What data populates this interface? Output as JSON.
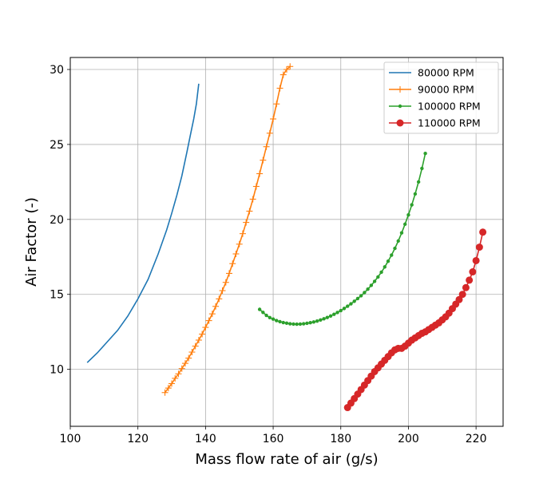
{
  "chart_data": {
    "type": "line",
    "title": "",
    "xlabel": "Mass flow rate of air (g/s)",
    "ylabel": "Air Factor (-)",
    "xlim": [
      100,
      228
    ],
    "ylim": [
      6.2,
      30.8
    ],
    "xticks": [
      100,
      120,
      140,
      160,
      180,
      200,
      220
    ],
    "yticks": [
      10,
      15,
      20,
      25,
      30
    ],
    "grid": true,
    "legend_position": "top-right",
    "series": [
      {
        "name": "  80000 RPM",
        "color": "#1f77b4",
        "marker": "none",
        "x": [
          105.0,
          108.0,
          111.0,
          114.0,
          117.0,
          120.0,
          123.0,
          126.0,
          128.5,
          130.0,
          131.5,
          133.0,
          134.5,
          135.5,
          136.5,
          137.3,
          138.0
        ],
        "y": [
          10.45,
          11.1,
          11.85,
          12.6,
          13.55,
          14.7,
          16.0,
          17.7,
          19.3,
          20.4,
          21.6,
          22.9,
          24.5,
          25.6,
          26.7,
          27.7,
          29.05
        ]
      },
      {
        "name": "  90000 RPM",
        "color": "#ff7f0e",
        "marker": "plus",
        "x": [
          128.0,
          129.0,
          130.0,
          131.0,
          132.0,
          133.0,
          134.0,
          135.0,
          136.0,
          137.0,
          138.0,
          139.0,
          140.0,
          141.0,
          142.0,
          143.0,
          144.0,
          145.0,
          146.0,
          147.0,
          148.0,
          149.0,
          150.0,
          151.0,
          152.0,
          153.0,
          154.0,
          155.0,
          156.0,
          157.0,
          158.0,
          159.0,
          160.0,
          161.0,
          162.0,
          163.0,
          164.0,
          165.0
        ],
        "y": [
          8.45,
          8.75,
          9.05,
          9.4,
          9.7,
          10.05,
          10.4,
          10.75,
          11.15,
          11.55,
          11.95,
          12.35,
          12.8,
          13.25,
          13.7,
          14.2,
          14.7,
          15.25,
          15.8,
          16.4,
          17.05,
          17.7,
          18.35,
          19.05,
          19.8,
          20.55,
          21.35,
          22.2,
          23.05,
          23.95,
          24.85,
          25.75,
          26.7,
          27.7,
          28.75,
          29.65,
          30.0,
          30.2
        ]
      },
      {
        "name": "  100000 RPM",
        "color": "#2ca02c",
        "marker": "point",
        "x": [
          156.0,
          157.0,
          158.0,
          159.0,
          160.0,
          161.0,
          162.0,
          163.0,
          164.0,
          165.0,
          166.0,
          167.0,
          168.0,
          169.0,
          170.0,
          171.0,
          172.0,
          173.0,
          174.0,
          175.0,
          176.0,
          177.0,
          178.0,
          179.0,
          180.0,
          181.0,
          182.0,
          183.0,
          184.0,
          185.0,
          186.0,
          187.0,
          188.0,
          189.0,
          190.0,
          191.0,
          192.0,
          193.0,
          194.0,
          195.0,
          196.0,
          197.0,
          198.0,
          199.0,
          200.0,
          201.0,
          202.0,
          203.0,
          204.0,
          205.0
        ],
        "y": [
          14.0,
          13.8,
          13.6,
          13.45,
          13.35,
          13.25,
          13.18,
          13.12,
          13.08,
          13.04,
          13.02,
          13.01,
          13.02,
          13.04,
          13.07,
          13.11,
          13.16,
          13.22,
          13.29,
          13.37,
          13.46,
          13.56,
          13.67,
          13.79,
          13.92,
          14.06,
          14.21,
          14.37,
          14.54,
          14.72,
          14.91,
          15.12,
          15.35,
          15.6,
          15.87,
          16.16,
          16.48,
          16.83,
          17.21,
          17.62,
          18.07,
          18.56,
          19.1,
          19.68,
          20.3,
          20.97,
          21.7,
          22.5,
          23.4,
          24.4
        ]
      },
      {
        "name": "  110000 RPM",
        "color": "#d62728",
        "marker": "circle",
        "x": [
          182.0,
          183.0,
          184.0,
          185.0,
          186.0,
          187.0,
          188.0,
          189.0,
          190.0,
          191.0,
          192.0,
          193.0,
          194.0,
          195.0,
          196.0,
          197.0,
          198.0,
          199.0,
          200.0,
          201.0,
          202.0,
          203.0,
          204.0,
          205.0,
          206.0,
          207.0,
          208.0,
          209.0,
          210.0,
          211.0,
          212.0,
          213.0,
          214.0,
          215.0,
          216.0,
          217.0,
          218.0,
          219.0,
          220.0,
          221.0,
          222.0
        ],
        "y": [
          7.45,
          7.75,
          8.05,
          8.35,
          8.65,
          8.95,
          9.25,
          9.55,
          9.85,
          10.1,
          10.35,
          10.6,
          10.85,
          11.1,
          11.3,
          11.4,
          11.4,
          11.55,
          11.75,
          11.95,
          12.1,
          12.25,
          12.4,
          12.5,
          12.65,
          12.8,
          12.95,
          13.1,
          13.3,
          13.5,
          13.75,
          14.05,
          14.35,
          14.65,
          15.0,
          15.45,
          15.95,
          16.5,
          17.25,
          18.15,
          19.15
        ]
      }
    ]
  }
}
